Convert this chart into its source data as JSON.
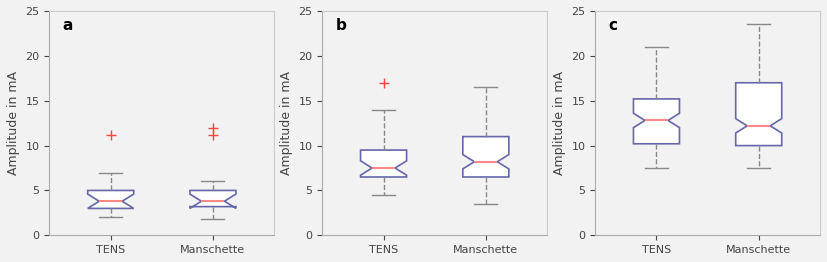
{
  "panels": [
    {
      "label": "a",
      "ylim": [
        0,
        25
      ],
      "yticks": [
        0,
        5,
        10,
        15,
        20,
        25
      ],
      "ylabel": "Amplitude in mA",
      "boxes": [
        {
          "name": "TENS",
          "whislo": 2.0,
          "q1": 3.0,
          "med": 3.8,
          "q3": 5.0,
          "whishi": 7.0,
          "fliers": [
            11.2
          ]
        },
        {
          "name": "Manschette",
          "whislo": 1.8,
          "q1": 3.2,
          "med": 3.8,
          "q3": 5.0,
          "whishi": 6.0,
          "fliers": [
            11.2,
            12.0
          ]
        }
      ]
    },
    {
      "label": "b",
      "ylim": [
        0,
        25
      ],
      "yticks": [
        0,
        5,
        10,
        15,
        20,
        25
      ],
      "ylabel": "Amplitude in mA",
      "boxes": [
        {
          "name": "TENS",
          "whislo": 4.5,
          "q1": 6.5,
          "med": 7.5,
          "q3": 9.5,
          "whishi": 14.0,
          "fliers": [
            17.0
          ]
        },
        {
          "name": "Manschette",
          "whislo": 3.5,
          "q1": 6.5,
          "med": 8.2,
          "q3": 11.0,
          "whishi": 16.5,
          "fliers": []
        }
      ]
    },
    {
      "label": "c",
      "ylim": [
        0,
        25
      ],
      "yticks": [
        0,
        5,
        10,
        15,
        20,
        25
      ],
      "ylabel": "Amplitude in mA",
      "boxes": [
        {
          "name": "TENS",
          "whislo": 7.5,
          "q1": 10.2,
          "med": 12.8,
          "q3": 15.2,
          "whishi": 21.0,
          "fliers": []
        },
        {
          "name": "Manschette",
          "whislo": 7.5,
          "q1": 10.0,
          "med": 12.2,
          "q3": 17.0,
          "whishi": 23.5,
          "fliers": []
        }
      ]
    }
  ],
  "box_color": "#6666aa",
  "median_color": "#ff8888",
  "whisker_color": "#888888",
  "flier_color": "#ff4444",
  "bg_color": "#f2f2f2",
  "box_width": 0.45,
  "positions": [
    1,
    2
  ]
}
